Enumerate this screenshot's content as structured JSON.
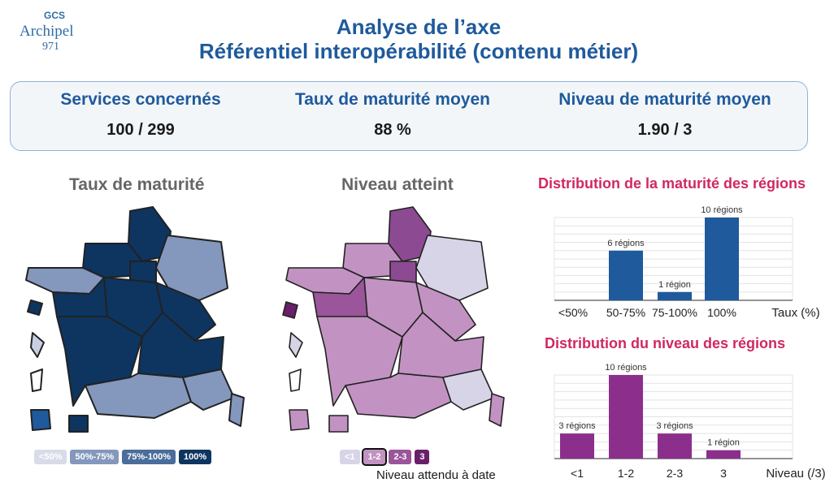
{
  "logo": {
    "top": "GCS",
    "name": "Archipel",
    "number": "971"
  },
  "header": {
    "line1": "Analyse de l’axe",
    "line2": "Référentiel interopérabilité (contenu métier)"
  },
  "kpis": [
    {
      "label": "Services concernés",
      "value": "100 / 299"
    },
    {
      "label": "Taux de maturité moyen",
      "value": "88 %"
    },
    {
      "label": "Niveau de maturité moyen",
      "value": "1.90 / 3"
    }
  ],
  "maps": {
    "maturity_title": "Taux de maturité",
    "level_title": "Niveau atteint",
    "maturity_legend": [
      "<50%",
      "50%-75%",
      "75%-100%",
      "100%"
    ],
    "level_legend": [
      "<1",
      "1-2",
      "2-3",
      "3"
    ],
    "expected_level_note": "Niveau attendu à date"
  },
  "colors": {
    "navy": "#0d3560",
    "steel": "#8497bd",
    "lightgrey": "#c9cee3",
    "purple": "#8c2f8c",
    "lilac": "#c293c2",
    "lavender": "#d8d4e8",
    "bar_blue": "#1f5a9c",
    "accent_red": "#d1285f"
  },
  "chart_data": [
    {
      "type": "bar",
      "title": "Distribution de la maturité des régions",
      "xlabel": "Taux (%)",
      "categories": [
        "<50%",
        "50-75%",
        "75-100%",
        "100%"
      ],
      "values": [
        0,
        6,
        1,
        10
      ],
      "data_labels": [
        "",
        "6 régions",
        "1 région",
        "10 régions"
      ],
      "ylim": [
        0,
        10
      ],
      "grid": true
    },
    {
      "type": "bar",
      "title": "Distribution du niveau des régions",
      "xlabel": "Niveau (/3)",
      "categories": [
        "<1",
        "1-2",
        "2-3",
        "3"
      ],
      "values": [
        3,
        10,
        3,
        1
      ],
      "data_labels": [
        "3 régions",
        "10 régions",
        "3 régions",
        "1 région"
      ],
      "ylim": [
        0,
        10
      ],
      "grid": true
    }
  ]
}
